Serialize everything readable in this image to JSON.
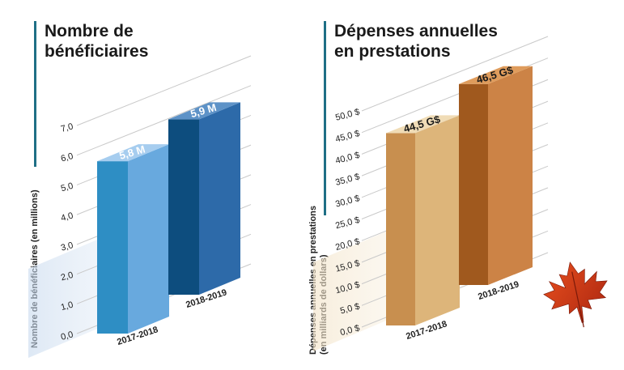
{
  "chart_data": [
    {
      "type": "bar",
      "title": [
        "Nombre de",
        "bénéficiaires"
      ],
      "ylabel": "Nombre de bénéficiaires (en millions)",
      "categories": [
        "2017-2018",
        "2018-2019"
      ],
      "values": [
        5.8,
        5.9
      ],
      "value_labels": [
        "5,8 M",
        "5,9 M"
      ],
      "y_ticks": [
        "0,0",
        "1,0",
        "2,0",
        "3,0",
        "4,0",
        "5,0",
        "6,0",
        "7,0"
      ],
      "ylim": [
        0,
        7
      ],
      "colors": {
        "bar1_front": "#2e8ec4",
        "bar1_side": "#68a9de",
        "bar1_top": "#a6cdef",
        "bar2_front": "#0d4d7e",
        "bar2_side": "#2d6aa9",
        "bar2_top": "#5d92c7"
      }
    },
    {
      "type": "bar",
      "title": [
        "Dépenses annuelles",
        "en prestations"
      ],
      "ylabel": [
        "Dépenses annuelles en prestations",
        "(en milliards de dollars)"
      ],
      "categories": [
        "2017-2018",
        "2018-2019"
      ],
      "values": [
        44.5,
        46.5
      ],
      "value_labels": [
        "44,5 G$",
        "46,5 G$"
      ],
      "y_ticks": [
        "0,0 $",
        "5,0 $",
        "10,0 $",
        "15,0 $",
        "20,0 $",
        "25,0 $",
        "30,0 $",
        "35,0 $",
        "40,0 $",
        "45,0 $",
        "50,0 $"
      ],
      "ylim": [
        0,
        50
      ],
      "colors": {
        "bar1_front": "#c88f4f",
        "bar1_side": "#ddb57a",
        "bar1_top": "#f0dcb6",
        "bar2_front": "#a0591e",
        "bar2_side": "#cc8346",
        "bar2_top": "#df9c5c"
      }
    }
  ]
}
